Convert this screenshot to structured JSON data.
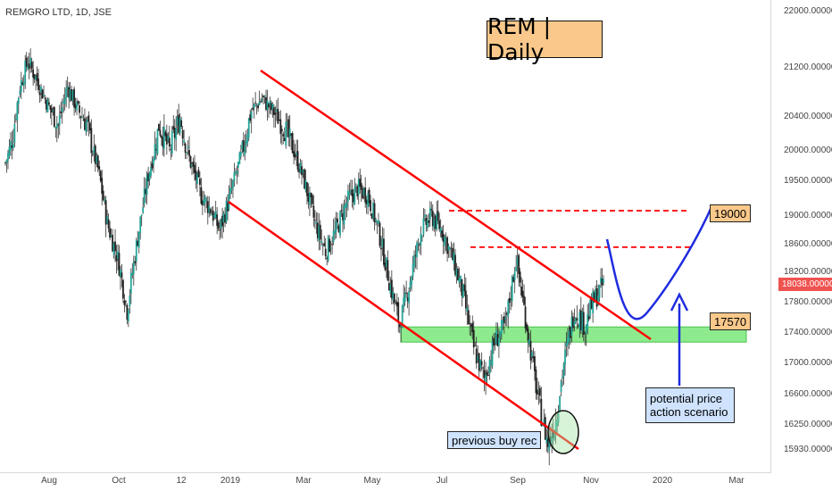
{
  "header": {
    "symbol": "REMGRO LTD, 1D, JSE"
  },
  "title_box": {
    "text": "REM | Daily"
  },
  "annotations": {
    "level_19000": "19000",
    "level_17570": "17570",
    "scenario": "potential price action scenario",
    "buy": "previous buy rec"
  },
  "last_price": "18038.00000",
  "colors": {
    "up": "#26a69a",
    "down": "#ef5350",
    "wick": "#333333",
    "channel": "#ff0000",
    "zone": "#79e87a",
    "arrow": "#1f2be0",
    "grid": "#e9e9e9"
  },
  "chart_data": {
    "type": "candlestick",
    "title": "REMGRO LTD, 1D, JSE",
    "y_ticks": [
      "22000.00000",
      "21200.00000",
      "20400.00000",
      "20000.00000",
      "19500.00000",
      "19000.00000",
      "18600.00000",
      "18200.00000",
      "17800.00000",
      "17400.00000",
      "17000.00000",
      "16600.00000",
      "16250.00000",
      "15930.00000"
    ],
    "x_ticks": [
      "Aug",
      "Oct",
      "12",
      "2019",
      "Mar",
      "May",
      "Jul",
      "Sep",
      "Nov",
      "2020",
      "Mar"
    ],
    "ylim": [
      15800,
      22200
    ],
    "close_path": [
      {
        "i": 0,
        "v": 19800
      },
      {
        "i": 6,
        "v": 20200
      },
      {
        "i": 11,
        "v": 20900
      },
      {
        "i": 17,
        "v": 21300
      },
      {
        "i": 24,
        "v": 21000
      },
      {
        "i": 32,
        "v": 20600
      },
      {
        "i": 40,
        "v": 20300
      },
      {
        "i": 47,
        "v": 20900
      },
      {
        "i": 55,
        "v": 20500
      },
      {
        "i": 62,
        "v": 20300
      },
      {
        "i": 70,
        "v": 19700
      },
      {
        "i": 77,
        "v": 18900
      },
      {
        "i": 85,
        "v": 18400
      },
      {
        "i": 92,
        "v": 17700
      },
      {
        "i": 100,
        "v": 18700
      },
      {
        "i": 108,
        "v": 19600
      },
      {
        "i": 116,
        "v": 20300
      },
      {
        "i": 124,
        "v": 20000
      },
      {
        "i": 132,
        "v": 20400
      },
      {
        "i": 140,
        "v": 19800
      },
      {
        "i": 148,
        "v": 19300
      },
      {
        "i": 155,
        "v": 19100
      },
      {
        "i": 162,
        "v": 18800
      },
      {
        "i": 170,
        "v": 19300
      },
      {
        "i": 178,
        "v": 19900
      },
      {
        "i": 186,
        "v": 20500
      },
      {
        "i": 194,
        "v": 20700
      },
      {
        "i": 202,
        "v": 20500
      },
      {
        "i": 210,
        "v": 20300
      },
      {
        "i": 218,
        "v": 20000
      },
      {
        "i": 226,
        "v": 19500
      },
      {
        "i": 234,
        "v": 18900
      },
      {
        "i": 242,
        "v": 18500
      },
      {
        "i": 250,
        "v": 18800
      },
      {
        "i": 258,
        "v": 19200
      },
      {
        "i": 266,
        "v": 19400
      },
      {
        "i": 274,
        "v": 19300
      },
      {
        "i": 282,
        "v": 18800
      },
      {
        "i": 290,
        "v": 18100
      },
      {
        "i": 298,
        "v": 17500
      },
      {
        "i": 306,
        "v": 18100
      },
      {
        "i": 314,
        "v": 18800
      },
      {
        "i": 322,
        "v": 19000
      },
      {
        "i": 330,
        "v": 18800
      },
      {
        "i": 338,
        "v": 18400
      },
      {
        "i": 346,
        "v": 17900
      },
      {
        "i": 354,
        "v": 17200
      },
      {
        "i": 362,
        "v": 16800
      },
      {
        "i": 370,
        "v": 17300
      },
      {
        "i": 378,
        "v": 17500
      },
      {
        "i": 386,
        "v": 18400
      },
      {
        "i": 394,
        "v": 17500
      },
      {
        "i": 402,
        "v": 16600
      },
      {
        "i": 410,
        "v": 16000
      },
      {
        "i": 416,
        "v": 16300
      },
      {
        "i": 422,
        "v": 17000
      },
      {
        "i": 430,
        "v": 17700
      },
      {
        "i": 438,
        "v": 17500
      },
      {
        "i": 444,
        "v": 17800
      },
      {
        "i": 452,
        "v": 18050
      }
    ],
    "levels": [
      {
        "price": 19000,
        "label": "19000",
        "style": "dashed"
      },
      {
        "price": 18550,
        "style": "dashed"
      },
      {
        "price": 17570,
        "label": "17570"
      }
    ],
    "support_zone": [
      17280,
      17480
    ],
    "grid": false,
    "legend": "none"
  }
}
